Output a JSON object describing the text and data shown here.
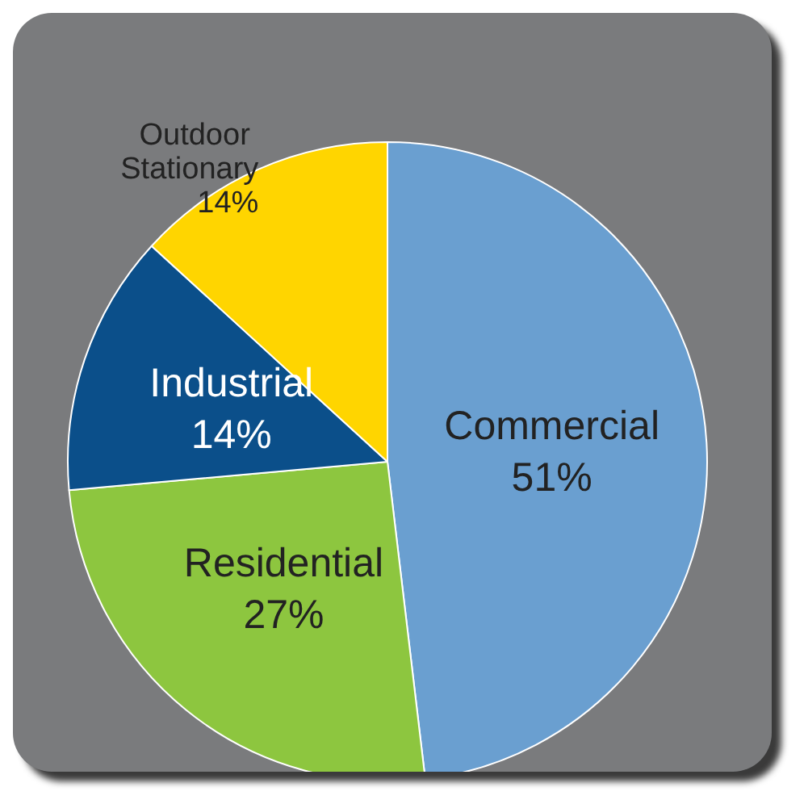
{
  "chart_data": {
    "type": "pie",
    "categories": [
      "Commercial",
      "Residential",
      "Industrial",
      "Outdoor Stationary"
    ],
    "values": [
      51,
      27,
      14,
      14
    ],
    "colors": [
      "#6a9fd0",
      "#8dc63f",
      "#0b4f8a",
      "#ffd500"
    ],
    "value_labels": [
      "51%",
      "27%",
      "14%",
      "14%"
    ]
  }
}
